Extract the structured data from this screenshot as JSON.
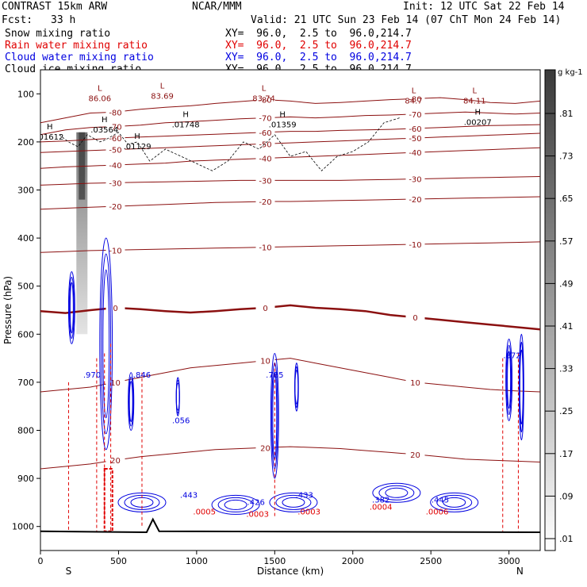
{
  "header": {
    "model": "CONTRAST 15km ARW",
    "org": "NCAR/MMM",
    "init": "Init: 12 UTC Sat 22 Feb 14",
    "fcst_label": "Fcst:",
    "fcst_value": "33 h",
    "valid": "Valid: 21 UTC Sun 23 Feb 14 (07 ChT Mon 24 Feb 14)"
  },
  "fields": [
    {
      "name": "Snow mixing ratio",
      "xy": "XY=  96.0,  2.5 to  96.0,214.7",
      "color": "#000000"
    },
    {
      "name": "Rain water mixing ratio",
      "xy": "XY=  96.0,  2.5 to  96.0,214.7",
      "color": "#e00000"
    },
    {
      "name": "Cloud water mixing ratio",
      "xy": "XY=  96.0,  2.5 to  96.0,214.7",
      "color": "#0000e0"
    },
    {
      "name": "Cloud ice mixing ratio",
      "xy": "XY=  96.0,  2.5 to  96.0,214.7",
      "color": "#000000"
    }
  ],
  "chart_data": {
    "type": "cross-section contour",
    "xlabel": "Distance (km)",
    "ylabel": "Pressure (hPa)",
    "xlim": [
      0,
      3200
    ],
    "ylim": [
      1050,
      50
    ],
    "x_ticks": [
      0,
      500,
      1000,
      1500,
      2000,
      2500,
      3000
    ],
    "y_ticks": [
      100,
      200,
      300,
      400,
      500,
      600,
      700,
      800,
      900,
      1000
    ],
    "endpoints": [
      "S",
      "N"
    ],
    "temperature_contours": [
      {
        "label": "-80",
        "p": [
          160,
          150,
          140,
          138,
          132,
          128,
          125,
          120,
          116,
          112,
          115,
          120,
          118,
          115,
          112,
          110,
          108,
          112,
          118,
          120,
          115
        ]
      },
      {
        "label": "-70",
        "p": [
          185,
          175,
          170,
          168,
          165,
          160,
          158,
          155,
          152,
          150,
          148,
          150,
          148,
          145,
          144,
          142,
          140,
          138,
          140,
          142,
          140
        ]
      },
      {
        "label": "-60",
        "p": [
          200,
          198,
          195,
          192,
          190,
          188,
          186,
          184,
          182,
          180,
          178,
          178,
          176,
          175,
          174,
          172,
          170,
          168,
          166,
          165,
          164
        ]
      },
      {
        "label": "-50",
        "p": [
          222,
          220,
          218,
          216,
          214,
          212,
          210,
          208,
          206,
          204,
          202,
          200,
          198,
          196,
          194,
          192,
          190,
          188,
          186,
          184,
          182
        ]
      },
      {
        "label": "-40",
        "p": [
          255,
          252,
          250,
          248,
          246,
          244,
          240,
          238,
          236,
          234,
          232,
          230,
          228,
          226,
          224,
          222,
          220,
          218,
          216,
          214,
          212
        ]
      },
      {
        "label": "-30",
        "p": [
          290,
          288,
          286,
          285,
          284,
          283,
          282,
          281,
          280,
          280,
          280,
          280,
          280,
          279,
          278,
          277,
          276,
          275,
          274,
          273,
          272
        ]
      },
      {
        "label": "-20",
        "p": [
          340,
          338,
          336,
          334,
          332,
          330,
          328,
          326,
          325,
          324,
          324,
          323,
          322,
          321,
          320,
          319,
          318,
          317,
          316,
          315,
          314
        ]
      },
      {
        "label": "-10",
        "p": [
          430,
          428,
          426,
          425,
          424,
          423,
          422,
          421,
          420,
          419,
          418,
          417,
          416,
          415,
          414,
          413,
          412,
          411,
          410,
          409,
          408
        ]
      },
      {
        "label": "0",
        "p": [
          552,
          556,
          550,
          545,
          548,
          552,
          555,
          552,
          548,
          545,
          540,
          545,
          548,
          552,
          560,
          565,
          570,
          575,
          580,
          585,
          590
        ]
      },
      {
        "label": "10",
        "p": [
          720,
          715,
          710,
          700,
          690,
          680,
          670,
          665,
          660,
          655,
          650,
          660,
          670,
          680,
          690,
          700,
          705,
          710,
          715,
          718,
          720
        ]
      },
      {
        "label": "20",
        "p": [
          880,
          875,
          870,
          862,
          855,
          850,
          845,
          840,
          838,
          836,
          834,
          836,
          838,
          842,
          846,
          850,
          855,
          860,
          862,
          864,
          866
        ]
      }
    ],
    "labels_L_H": [
      {
        "kind": "L",
        "value": "86.06"
      },
      {
        "kind": "L",
        "value": "83.69"
      },
      {
        "kind": "L",
        "value": "83.74"
      },
      {
        "kind": "L",
        "value": "84.7"
      },
      {
        "kind": "L",
        "value": "84.11"
      },
      {
        "kind": "H",
        "value": ".01612"
      },
      {
        "kind": "H",
        "value": ".03564"
      },
      {
        "kind": "H",
        "value": ".01129"
      },
      {
        "kind": "H",
        "value": ".01748"
      },
      {
        "kind": "H",
        "value": ".01359"
      },
      {
        "kind": "H",
        "value": ".00207"
      }
    ],
    "cloud_water_maxima": [
      ".970",
      ".846",
      ".056",
      ".785",
      ".872",
      ".443",
      ".426",
      ".433",
      ".382",
      ".445"
    ],
    "rain_minima": [
      ".0005",
      ".0003",
      ".0003",
      ".0004",
      ".0006"
    ],
    "colorbar": {
      "unit": "g kg-1",
      "ticks": [
        ".81",
        ".73",
        ".65",
        ".57",
        ".49",
        ".41",
        ".33",
        ".25",
        ".17",
        ".09",
        ".01"
      ]
    }
  }
}
